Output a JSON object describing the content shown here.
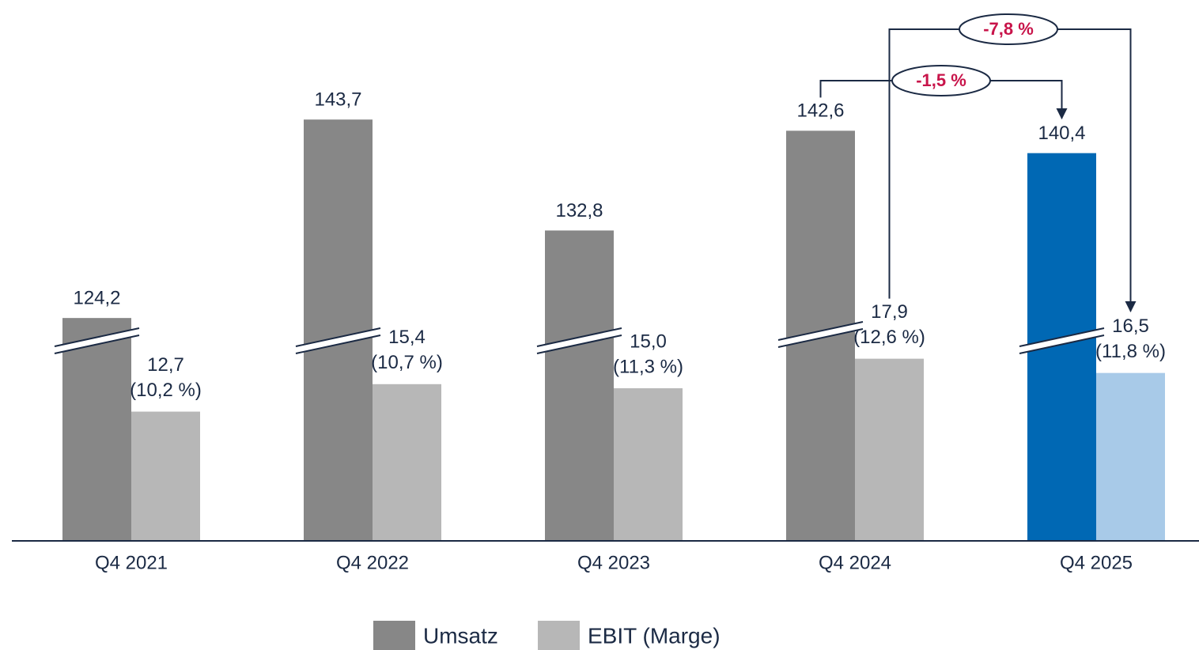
{
  "chart_data": {
    "type": "bar",
    "categories": [
      "Q4 2021",
      "Q4 2022",
      "Q4 2023",
      "Q4 2024",
      "Q4 2025"
    ],
    "series": [
      {
        "name": "Umsatz",
        "color": "#878787",
        "colors": [
          "#878787",
          "#878787",
          "#878787",
          "#878787",
          "#0068b4"
        ],
        "values": [
          124.2,
          143.7,
          132.8,
          142.6,
          140.4
        ],
        "value_labels": [
          "124,2",
          "143,7",
          "132,8",
          "142,6",
          "140,4"
        ]
      },
      {
        "name": "EBIT (Marge)",
        "color": "#b7b7b7",
        "colors": [
          "#b7b7b7",
          "#b7b7b7",
          "#b7b7b7",
          "#b7b7b7",
          "#a8cae8"
        ],
        "values": [
          12.7,
          15.4,
          15.0,
          17.9,
          16.5
        ],
        "value_labels": [
          "12,7",
          "15,4",
          "15,0",
          "17,9",
          "16,5"
        ],
        "margin_labels": [
          "(10,2 %)",
          "(10,7 %)",
          "(11,3 %)",
          "(12,6 %)",
          "(11,8 %)"
        ]
      }
    ],
    "annotations": [
      {
        "label": "-1,5 %",
        "from_series": 0
      },
      {
        "label": "-7,8 %",
        "from_series": 1
      }
    ],
    "broken_axis": true
  }
}
